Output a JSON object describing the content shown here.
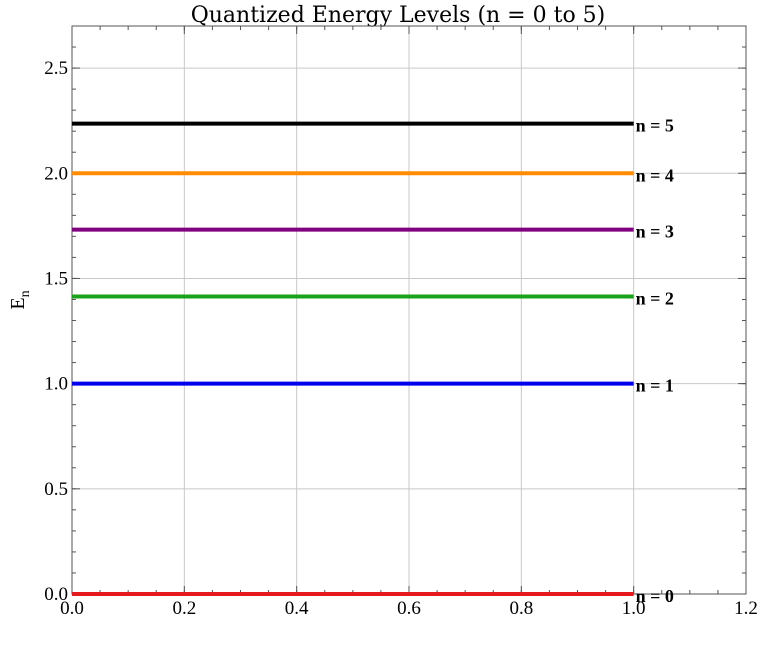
{
  "chart_data": {
    "type": "line",
    "title": "Quantized Energy Levels (n = 0 to 5)",
    "xlabel": "",
    "ylabel": "E",
    "ylabel_subscript": "n",
    "xlim": [
      0,
      1.2
    ],
    "ylim": [
      0,
      2.7
    ],
    "xticks": [
      0,
      0.2,
      0.4,
      0.6,
      0.8,
      1.0,
      1.2
    ],
    "xtick_labels": [
      "0.0",
      "0.2",
      "0.4",
      "0.6",
      "0.8",
      "1.0",
      "1.2"
    ],
    "yticks": [
      0,
      0.5,
      1.0,
      1.5,
      2.0,
      2.5
    ],
    "ytick_labels": [
      "0.0",
      "0.5",
      "1.0",
      "1.5",
      "2.0",
      "2.5"
    ],
    "grid": true,
    "series": [
      {
        "label": "n = 0",
        "x": [
          0,
          1
        ],
        "y": [
          0,
          0
        ],
        "color": "#e41a1c"
      },
      {
        "label": "n = 1",
        "x": [
          0,
          1
        ],
        "y": [
          1,
          1
        ],
        "color": "#0000ee"
      },
      {
        "label": "n = 2",
        "x": [
          0,
          1
        ],
        "y": [
          1.414,
          1.414
        ],
        "color": "#1aa31a"
      },
      {
        "label": "n = 3",
        "x": [
          0,
          1
        ],
        "y": [
          1.732,
          1.732
        ],
        "color": "#800080"
      },
      {
        "label": "n = 4",
        "x": [
          0,
          1
        ],
        "y": [
          2,
          2
        ],
        "color": "#ff8c00"
      },
      {
        "label": "n = 5",
        "x": [
          0,
          1
        ],
        "y": [
          2.236,
          2.236
        ],
        "color": "#000000"
      }
    ]
  }
}
